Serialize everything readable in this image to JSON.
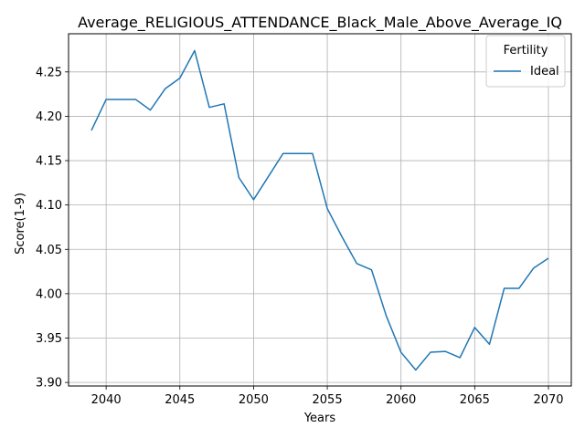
{
  "chart_data": {
    "type": "line",
    "title": "Average_RELIGIOUS_ATTENDANCE_Black_Male_Above_Average_IQ",
    "xlabel": "Years",
    "ylabel": "Score(1-9)",
    "xlim": [
      2037.45,
      2071.55
    ],
    "ylim": [
      3.896,
      4.293
    ],
    "grid": true,
    "xticks": [
      2040,
      2045,
      2050,
      2055,
      2060,
      2065,
      2070
    ],
    "yticks": [
      3.9,
      3.95,
      4.0,
      4.05,
      4.1,
      4.15,
      4.2,
      4.25
    ],
    "ytick_labels": [
      "3.90",
      "3.95",
      "4.00",
      "4.05",
      "4.10",
      "4.15",
      "4.20",
      "4.25"
    ],
    "legend": {
      "title": "Fertility",
      "position": "top-right"
    },
    "x": [
      2039,
      2040,
      2041,
      2042,
      2043,
      2044,
      2045,
      2046,
      2047,
      2048,
      2049,
      2050,
      2051,
      2052,
      2053,
      2054,
      2055,
      2056,
      2057,
      2058,
      2059,
      2060,
      2061,
      2062,
      2063,
      2064,
      2065,
      2066,
      2067,
      2068,
      2069,
      2070
    ],
    "series": [
      {
        "name": "Ideal",
        "color": "#1f77b4",
        "values": [
          4.184,
          4.219,
          4.219,
          4.219,
          4.207,
          4.231,
          4.243,
          4.274,
          4.21,
          4.214,
          4.131,
          4.106,
          4.132,
          4.158,
          4.158,
          4.158,
          4.096,
          4.064,
          4.034,
          4.027,
          3.975,
          3.934,
          3.914,
          3.934,
          3.935,
          3.928,
          3.962,
          3.943,
          4.006,
          4.006,
          4.029,
          4.04
        ]
      }
    ]
  }
}
